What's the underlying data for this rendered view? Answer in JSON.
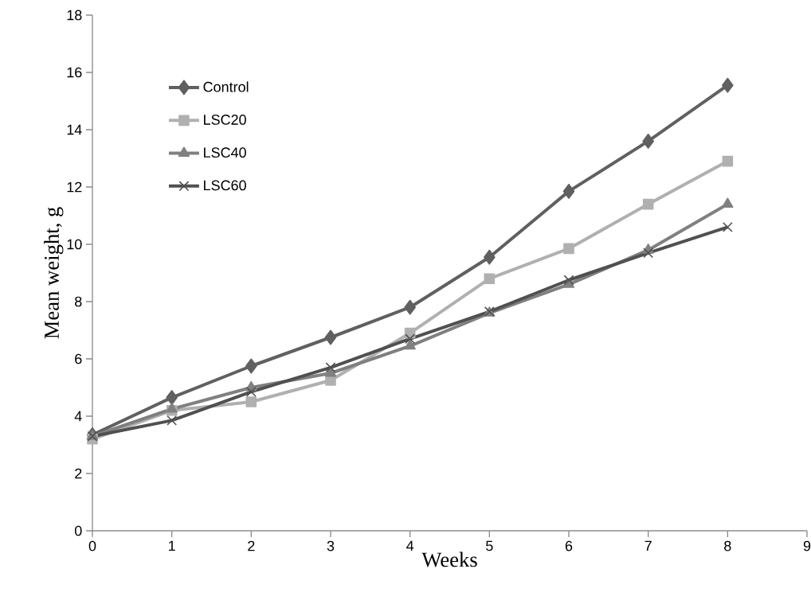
{
  "chart_data": {
    "type": "line",
    "xlabel": "Weeks",
    "ylabel": "Mean  weight, g",
    "x": [
      0,
      1,
      2,
      3,
      4,
      5,
      6,
      7,
      8
    ],
    "xlim": [
      0,
      9
    ],
    "xticks": [
      0,
      1,
      2,
      3,
      4,
      5,
      6,
      7,
      8,
      9
    ],
    "ylim": [
      0,
      18
    ],
    "yticks": [
      0,
      2,
      4,
      6,
      8,
      10,
      12,
      14,
      16,
      18
    ],
    "grid": false,
    "legend": "top left",
    "series": [
      {
        "name": "Control",
        "color": "#606060",
        "marker": "diamond",
        "values": [
          3.35,
          4.65,
          5.75,
          6.75,
          7.8,
          9.55,
          11.85,
          13.6,
          15.55
        ]
      },
      {
        "name": "LSC20",
        "color": "#b0b0b0",
        "marker": "square",
        "values": [
          3.2,
          4.2,
          4.5,
          5.25,
          6.9,
          8.8,
          9.85,
          11.4,
          12.9
        ]
      },
      {
        "name": "LSC40",
        "color": "#808080",
        "marker": "triangle",
        "values": [
          3.3,
          4.25,
          5.0,
          5.5,
          6.45,
          7.6,
          8.6,
          9.8,
          11.4
        ]
      },
      {
        "name": "LSC60",
        "color": "#505050",
        "marker": "cross",
        "values": [
          3.3,
          3.85,
          4.85,
          5.7,
          6.7,
          7.65,
          8.75,
          9.7,
          10.6
        ]
      }
    ]
  }
}
